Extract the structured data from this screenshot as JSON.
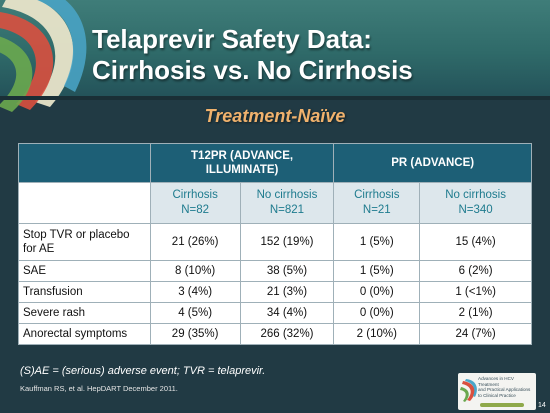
{
  "title": {
    "line1": "Telaprevir Safety Data:",
    "line2": "Cirrhosis vs. No Cirrhosis"
  },
  "subtitle": "Treatment-Naïve",
  "table": {
    "group_headers": [
      "T12PR (ADVANCE, ILLUMINATE)",
      "PR (ADVANCE)"
    ],
    "sub_headers": [
      {
        "label": "Cirrhosis",
        "n": "N=82"
      },
      {
        "label": "No cirrhosis",
        "n": "N=821"
      },
      {
        "label": "Cirrhosis",
        "n": "N=21"
      },
      {
        "label": "No cirrhosis",
        "n": "N=340"
      }
    ],
    "rows": [
      {
        "label": "Stop TVR or placebo for AE",
        "values": [
          "21 (26%)",
          "152 (19%)",
          "1 (5%)",
          "15 (4%)"
        ]
      },
      {
        "label": "SAE",
        "values": [
          "8 (10%)",
          "38 (5%)",
          "1 (5%)",
          "6 (2%)"
        ]
      },
      {
        "label": "Transfusion",
        "values": [
          "3 (4%)",
          "21 (3%)",
          "0 (0%)",
          "1 (<1%)"
        ]
      },
      {
        "label": "Severe rash",
        "values": [
          "4 (5%)",
          "34 (4%)",
          "0 (0%)",
          "2 (1%)"
        ]
      },
      {
        "label": "Anorectal symptoms",
        "values": [
          "29 (35%)",
          "266 (32%)",
          "2 (10%)",
          "24 (7%)"
        ]
      }
    ]
  },
  "footnote": "(S)AE = (serious) adverse event; TVR = telaprevir.",
  "citation": "Kauffman RS, et al. HepDART  December 2011.",
  "badge": {
    "line1": "Advances in HCV Treatment",
    "line2": "and Practical Applications",
    "line3": "to Clinical Practice"
  },
  "page_number": "14",
  "colors": {
    "background": "#213a44",
    "header": "#2f6a69",
    "subtitle": "#f0b26d",
    "table_header": "#1d5f76",
    "subheader_bg": "#dde7ec",
    "subheader_text": "#1e7b8e"
  },
  "icons": [
    "swirl-logo-icon",
    "badge-swirl-icon"
  ]
}
